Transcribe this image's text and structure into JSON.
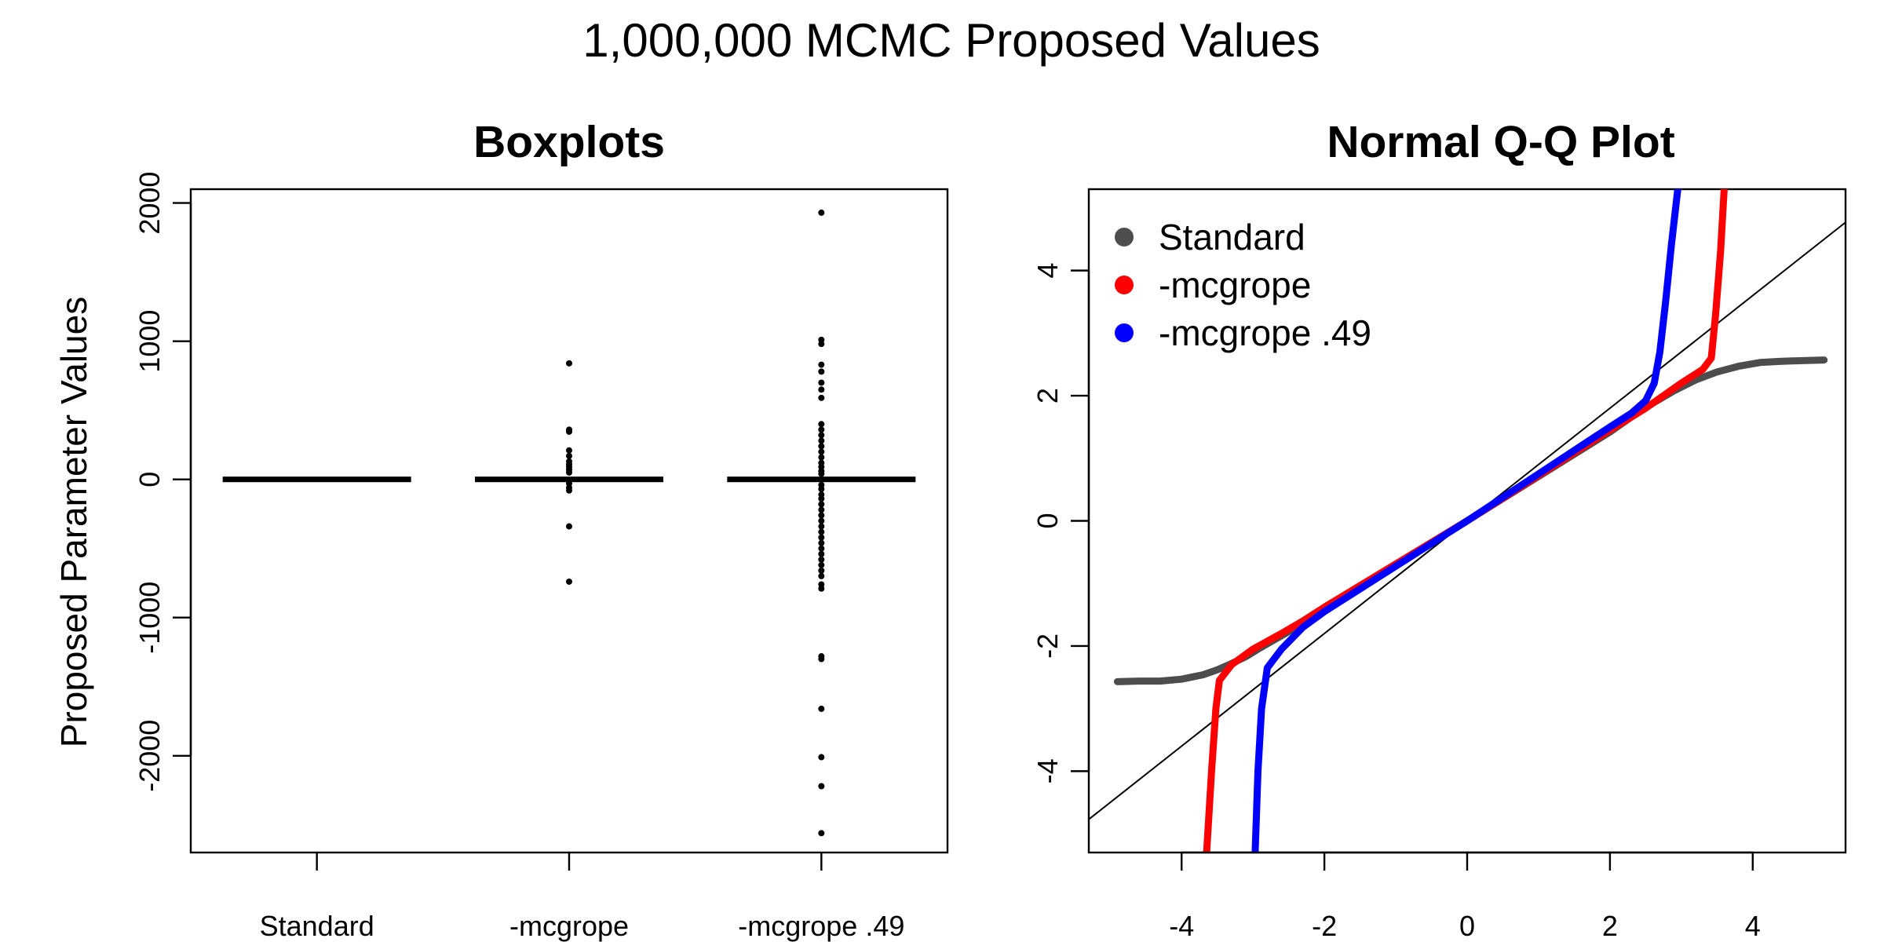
{
  "figure_title": "1,000,000 MCMC Proposed Values",
  "colors": {
    "standard": "#4d4d4d",
    "mcgrope": "#ff0000",
    "mcgrope49": "#0000ff",
    "axis": "#000000"
  },
  "chart_data": [
    {
      "type": "box",
      "title": "Boxplots",
      "xlabel": "",
      "ylabel": "Proposed Parameter Values",
      "categories": [
        "Standard",
        "-mcgrope",
        "-mcgrope .49"
      ],
      "ylim": [
        -2700,
        2100
      ],
      "yticks": [
        -2000,
        -1000,
        0,
        1000,
        2000
      ],
      "boxes": [
        {
          "name": "Standard",
          "box_span": [
            -3,
            3
          ],
          "outliers": []
        },
        {
          "name": "-mcgrope",
          "box_span": [
            -3,
            3
          ],
          "outliers": [
            840,
            360,
            345,
            210,
            170,
            130,
            110,
            90,
            70,
            50,
            -30,
            -60,
            -80,
            -340,
            -740
          ]
        },
        {
          "name": "-mcgrope .49",
          "box_span": [
            -3,
            3
          ],
          "outliers": [
            1930,
            1010,
            980,
            830,
            780,
            700,
            650,
            590,
            400,
            360,
            320,
            280,
            240,
            200,
            160,
            120,
            90,
            60,
            40,
            -40,
            -70,
            -110,
            -140,
            -180,
            -220,
            -260,
            -300,
            -340,
            -380,
            -420,
            -460,
            -500,
            -540,
            -580,
            -620,
            -660,
            -700,
            -760,
            -790,
            -1280,
            -1300,
            -1660,
            -2010,
            -2220,
            -2560
          ]
        }
      ]
    },
    {
      "type": "scatter",
      "title": "Normal Q-Q Plot",
      "xlabel": "",
      "ylabel": "",
      "xlim": [
        -5.3,
        5.3
      ],
      "ylim": [
        -5.3,
        5.3
      ],
      "xticks": [
        -4,
        -2,
        0,
        2,
        4
      ],
      "yticks": [
        -4,
        -2,
        0,
        2,
        4
      ],
      "legend": {
        "position": "top-left",
        "entries": [
          "Standard",
          "-mcgrope",
          "-mcgrope .49"
        ]
      },
      "reference_line": {
        "slope": 0.9,
        "intercept": 0
      },
      "series": [
        {
          "name": "Standard",
          "color": "#4d4d4d",
          "points": [
            [
              -4.9,
              -2.57
            ],
            [
              -4.6,
              -2.56
            ],
            [
              -4.3,
              -2.56
            ],
            [
              -4.0,
              -2.53
            ],
            [
              -3.7,
              -2.46
            ],
            [
              -3.5,
              -2.38
            ],
            [
              -3.3,
              -2.28
            ],
            [
              -3.1,
              -2.17
            ],
            [
              -2.9,
              -2.03
            ],
            [
              -2.7,
              -1.9
            ],
            [
              -2.3,
              -1.64
            ],
            [
              -2.0,
              -1.4
            ],
            [
              0.0,
              0.0
            ],
            [
              2.0,
              1.42
            ],
            [
              2.3,
              1.66
            ],
            [
              2.6,
              1.88
            ],
            [
              2.9,
              2.08
            ],
            [
              3.2,
              2.25
            ],
            [
              3.5,
              2.38
            ],
            [
              3.8,
              2.47
            ],
            [
              4.1,
              2.53
            ],
            [
              4.4,
              2.55
            ],
            [
              4.7,
              2.56
            ],
            [
              5.0,
              2.57
            ]
          ]
        },
        {
          "name": "-mcgrope",
          "color": "#ff0000",
          "points": [
            [
              -3.65,
              -5.3
            ],
            [
              -3.58,
              -4.0
            ],
            [
              -3.52,
              -3.0
            ],
            [
              -3.47,
              -2.55
            ],
            [
              -3.3,
              -2.3
            ],
            [
              -3.0,
              -2.05
            ],
            [
              -2.6,
              -1.8
            ],
            [
              -2.3,
              -1.6
            ],
            [
              -2.0,
              -1.38
            ],
            [
              0.0,
              0.0
            ],
            [
              2.0,
              1.45
            ],
            [
              2.5,
              1.8
            ],
            [
              3.0,
              2.2
            ],
            [
              3.3,
              2.42
            ],
            [
              3.42,
              2.6
            ],
            [
              3.48,
              3.3
            ],
            [
              3.55,
              4.3
            ],
            [
              3.6,
              5.3
            ]
          ]
        },
        {
          "name": "-mcgrope .49",
          "color": "#0000ff",
          "points": [
            [
              -2.97,
              -5.3
            ],
            [
              -2.93,
              -4.0
            ],
            [
              -2.88,
              -3.0
            ],
            [
              -2.8,
              -2.35
            ],
            [
              -2.6,
              -2.05
            ],
            [
              -2.3,
              -1.7
            ],
            [
              -2.0,
              -1.45
            ],
            [
              0.0,
              0.0
            ],
            [
              2.0,
              1.5
            ],
            [
              2.3,
              1.72
            ],
            [
              2.5,
              1.92
            ],
            [
              2.62,
              2.2
            ],
            [
              2.7,
              2.7
            ],
            [
              2.78,
              3.5
            ],
            [
              2.86,
              4.4
            ],
            [
              2.95,
              5.3
            ]
          ]
        }
      ]
    }
  ]
}
